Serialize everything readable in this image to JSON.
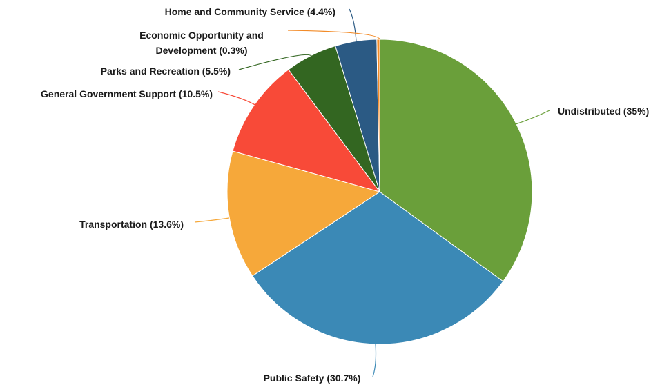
{
  "chart_data": {
    "type": "pie",
    "title": "",
    "start_angle_deg": 0,
    "direction": "clockwise",
    "slices": [
      {
        "label": "Undistributed (35%)",
        "value": 35.0,
        "color": "#6a9f3a"
      },
      {
        "label": "Public Safety (30.7%)",
        "value": 30.7,
        "color": "#3b89b6"
      },
      {
        "label": "Transportation (13.6%)",
        "value": 13.6,
        "color": "#f6a83a"
      },
      {
        "label": "General Government Support (10.5%)",
        "value": 10.5,
        "color": "#f84a38"
      },
      {
        "label": "Parks and Recreation (5.5%)",
        "value": 5.5,
        "color": "#336621"
      },
      {
        "label": "Home and Community Service (4.4%)",
        "value": 4.4,
        "color": "#2b5a84"
      },
      {
        "label": [
          "Economic Opportunity and",
          "Development (0.3%)"
        ],
        "value": 0.3,
        "color": "#f28b28"
      }
    ]
  }
}
